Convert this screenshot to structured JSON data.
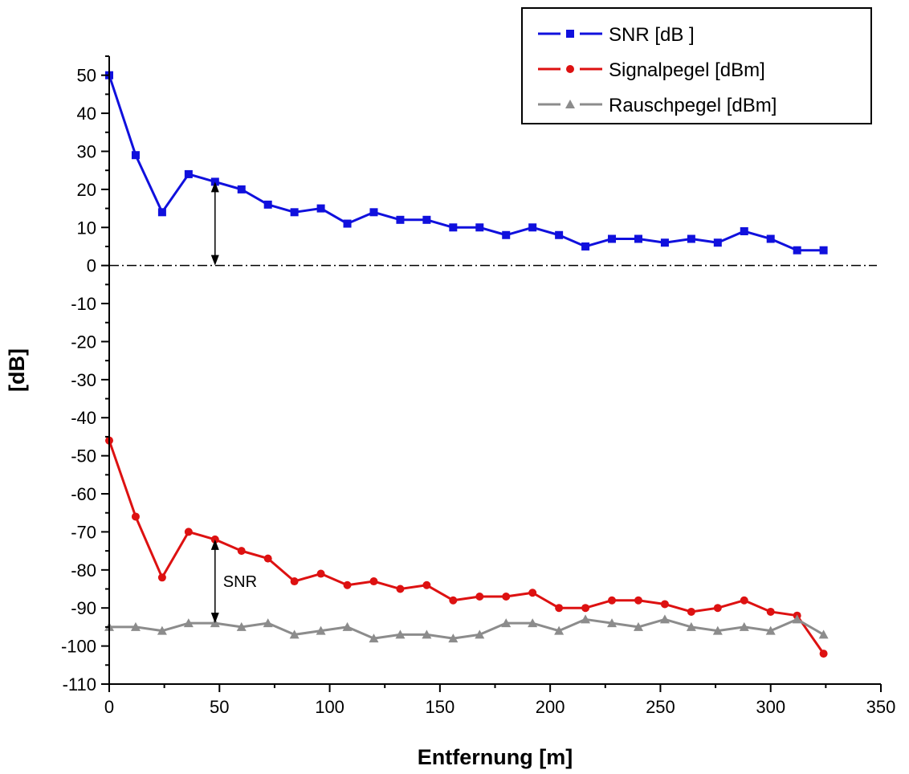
{
  "chart_data": {
    "type": "line",
    "xlabel": "Entfernung [m]",
    "ylabel": "[dB]",
    "xlim": [
      0,
      350
    ],
    "ylim": [
      -110,
      55
    ],
    "x_ticks": [
      0,
      50,
      100,
      150,
      200,
      250,
      300,
      350
    ],
    "y_ticks": [
      50,
      40,
      30,
      20,
      10,
      0,
      -10,
      -20,
      -30,
      -40,
      -50,
      -60,
      -70,
      -80,
      -90,
      -100,
      -110
    ],
    "grid": false,
    "legend_position": "top-right",
    "reference_line": {
      "y": 0,
      "style": "dash-dot"
    },
    "annotations": [
      {
        "text": "",
        "x": 48,
        "from": 0,
        "to": 22
      },
      {
        "text": "SNR",
        "x": 48,
        "from": -94,
        "to": -72
      }
    ],
    "series": [
      {
        "name": "SNR [dB ]",
        "color": "#1010dd",
        "marker": "square",
        "x": [
          0,
          12,
          24,
          36,
          48,
          60,
          72,
          84,
          96,
          108,
          120,
          132,
          144,
          156,
          168,
          180,
          192,
          204,
          216,
          228,
          240,
          252,
          264,
          276,
          288,
          300,
          312,
          324
        ],
        "y": [
          50,
          29,
          14,
          24,
          22,
          20,
          16,
          14,
          15,
          11,
          14,
          12,
          12,
          10,
          10,
          8,
          10,
          8,
          5,
          7,
          7,
          6,
          7,
          6,
          9,
          7,
          4,
          4
        ]
      },
      {
        "name": "Signalpegel [dBm]",
        "color": "#dd1111",
        "marker": "circle",
        "x": [
          0,
          12,
          24,
          36,
          48,
          60,
          72,
          84,
          96,
          108,
          120,
          132,
          144,
          156,
          168,
          180,
          192,
          204,
          216,
          228,
          240,
          252,
          264,
          276,
          288,
          300,
          312,
          324
        ],
        "y": [
          -46,
          -66,
          -82,
          -70,
          -72,
          -75,
          -77,
          -83,
          -81,
          -84,
          -83,
          -85,
          -84,
          -88,
          -87,
          -87,
          -86,
          -90,
          -90,
          -88,
          -88,
          -89,
          -91,
          -90,
          -88,
          -91,
          -92,
          -102
        ]
      },
      {
        "name": "Rauschpegel [dBm]",
        "color": "#8c8c8c",
        "marker": "triangle",
        "x": [
          0,
          12,
          24,
          36,
          48,
          60,
          72,
          84,
          96,
          108,
          120,
          132,
          144,
          156,
          168,
          180,
          192,
          204,
          216,
          228,
          240,
          252,
          264,
          276,
          288,
          300,
          312,
          324
        ],
        "y": [
          -95,
          -95,
          -96,
          -94,
          -94,
          -95,
          -94,
          -97,
          -96,
          -95,
          -98,
          -97,
          -97,
          -98,
          -97,
          -94,
          -94,
          -96,
          -93,
          -94,
          -95,
          -93,
          -95,
          -96,
          -95,
          -96,
          -93,
          -97
        ]
      }
    ]
  }
}
